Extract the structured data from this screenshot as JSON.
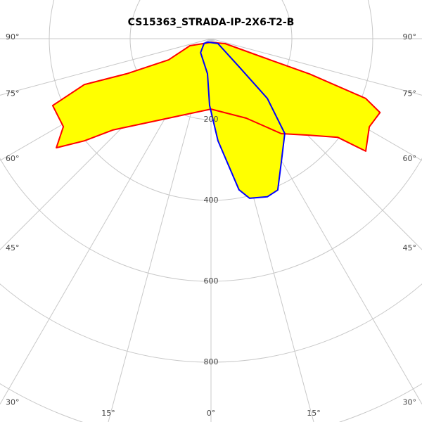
{
  "chart_data": {
    "type": "polar",
    "title": "CS15363_STRADA-IP-2X6-T2-B",
    "rlim": [
      0,
      1000
    ],
    "rticks": [
      200,
      400,
      600,
      800
    ],
    "angleticks": [
      {
        "value": -90,
        "label": "90°"
      },
      {
        "value": -75,
        "label": "75°"
      },
      {
        "value": -60,
        "label": "60°"
      },
      {
        "value": -45,
        "label": "45°"
      },
      {
        "value": -30,
        "label": "30°"
      },
      {
        "value": -15,
        "label": "15°"
      },
      {
        "value": 0,
        "label": "0°"
      },
      {
        "value": 15,
        "label": "15°"
      },
      {
        "value": 30,
        "label": "30°"
      },
      {
        "value": 45,
        "label": "45°"
      },
      {
        "value": 60,
        "label": "60°"
      },
      {
        "value": 75,
        "label": "75°"
      },
      {
        "value": 90,
        "label": "90°"
      }
    ],
    "grid": true,
    "series": [
      {
        "color": "#ff0000",
        "fill": "#ffff00",
        "angles": [
          0,
          -71.6,
          -63.4,
          -67.4,
          -70.1,
          -67.1,
          -59.2,
          -54.8,
          -51.1,
          -47.1,
          -31.3,
          0,
          23.9,
          36.5,
          45.6,
          52.1,
          54.0,
          60.9,
          66.4,
          68.9,
          70.3,
          70.3,
          70.7
        ],
        "values": [
          9,
          55,
          117,
          226,
          333,
          425,
          425,
          468,
          402,
          332,
          234,
          174,
          215,
          292,
          341,
          397,
          473,
          448,
          456,
          410,
          259,
          129,
          37
        ]
      },
      {
        "color": "#0000ff",
        "fill": "#ffff00",
        "angles": [
          -45,
          55,
          45,
          43.3,
          37.9,
          29.7,
          23.8,
          19.6,
          13.6,
          10.5,
          3.9,
          -1.2,
          -5.7,
          -36.9,
          -55
        ],
        "values": [
          12,
          21,
          98,
          203,
          297,
          351,
          409,
          415,
          406,
          380,
          253,
          165,
          87,
          43,
          21
        ]
      }
    ]
  }
}
